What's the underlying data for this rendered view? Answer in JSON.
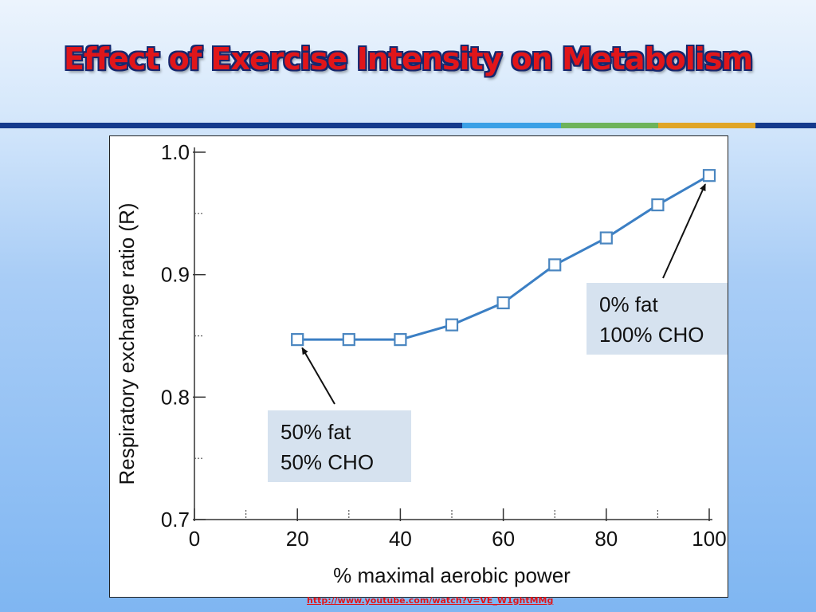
{
  "slide": {
    "title": "Effect of Exercise Intensity on Metabolism",
    "source_link": "http://www.youtube.com/watch?v=VE_W1ghtMMg"
  },
  "colors": {
    "title_text": "#e0161a",
    "title_outline": "#15286f",
    "header_band_navy": "#143a8c",
    "header_band_sky": "#3aa0e6",
    "header_band_green": "#6db35a",
    "header_band_gold": "#e0a526",
    "series_line": "#3b7fc4",
    "annotation_fill": "#c8d8ea"
  },
  "chart_data": {
    "type": "line",
    "xlabel": "% maximal aerobic power",
    "ylabel": "Respiratory exchange ratio (R)",
    "xlim": [
      0,
      100
    ],
    "ylim": [
      0.7,
      1.0
    ],
    "x_ticks": [
      0,
      20,
      40,
      60,
      80,
      100
    ],
    "y_ticks": [
      0.7,
      0.8,
      0.9,
      1.0
    ],
    "x_tick_labels": [
      "0",
      "20",
      "40",
      "60",
      "80",
      "100"
    ],
    "y_tick_labels": [
      "0.7",
      "0.8",
      "0.9",
      "1.0"
    ],
    "grid": false,
    "marker": "open-square",
    "series": [
      {
        "x": [
          20,
          30,
          40,
          50,
          60,
          70,
          80,
          90,
          100
        ],
        "y": [
          0.847,
          0.847,
          0.847,
          0.859,
          0.877,
          0.908,
          0.93,
          0.957,
          0.981
        ]
      }
    ],
    "annotations": [
      {
        "lines": [
          "50% fat",
          "50% CHO"
        ],
        "points_to": [
          20,
          0.847
        ]
      },
      {
        "lines": [
          "0% fat",
          "100% CHO"
        ],
        "points_to": [
          100,
          0.981
        ]
      }
    ]
  }
}
